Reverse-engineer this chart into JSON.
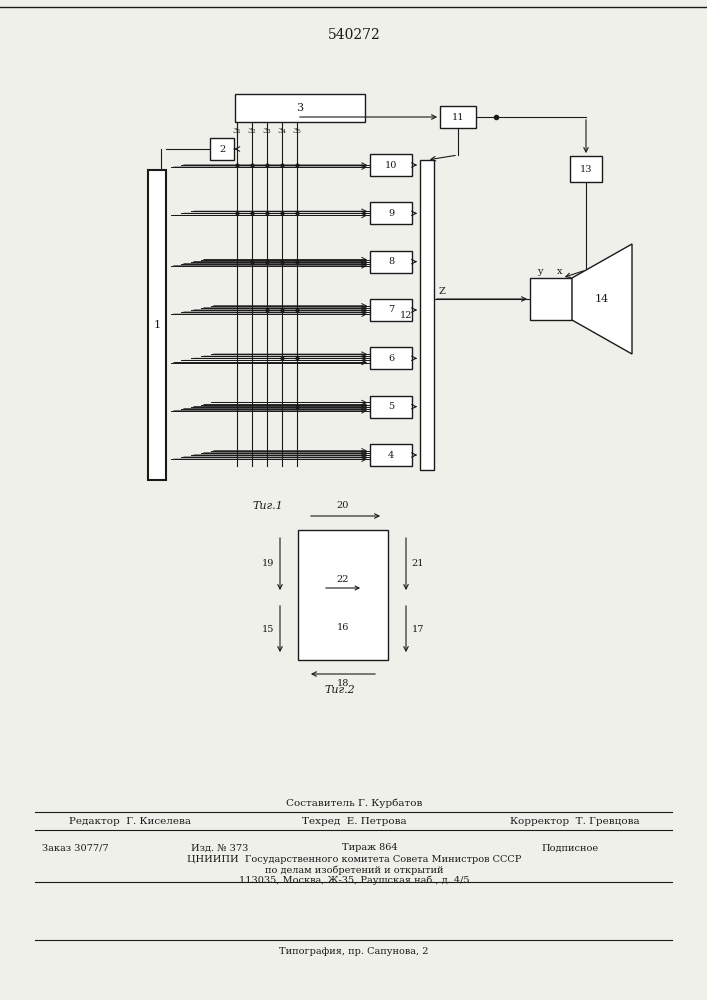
{
  "title": "540272",
  "fig1_label": "Τиг.1",
  "fig2_label": "Τиг.2",
  "bg_color": "#f0f0eb",
  "line_color": "#1a1a1a",
  "footer_line1": "Составитель Г. Курбатов",
  "footer_line2a": "Редактор  Г. Киселева",
  "footer_line2b": "Техред  Е. Петрова",
  "footer_line2c": "Корректор  Т. Гревцова",
  "footer_line3a": "Заказ 3077/7",
  "footer_line3b": "Изд. № 373",
  "footer_line3c": "Тираж 864",
  "footer_line3d": "Подписное",
  "footer_line4": "ЦНИИПИ  Государственного комитета Совета Министров СССР",
  "footer_line5": "по делам изобретений и открытий",
  "footer_line6": "113035, Москва, Ж-35, Раушская наб., д. 4/5",
  "footer_line7": "Типография, пр. Сапунова, 2"
}
